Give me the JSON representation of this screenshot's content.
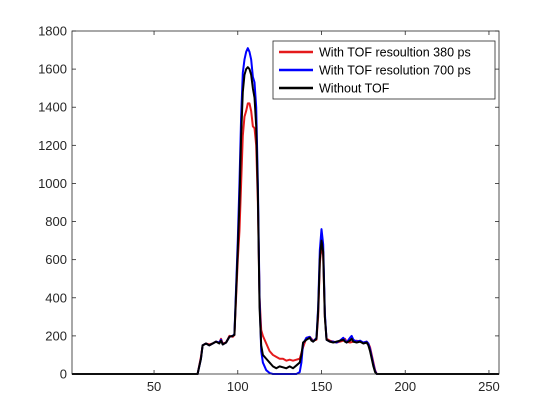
{
  "chart_data": {
    "type": "line",
    "title": "",
    "xlabel": "",
    "ylabel": "",
    "xlim": [
      1,
      256
    ],
    "ylim": [
      0,
      1800
    ],
    "xticks": [
      50,
      100,
      150,
      200,
      250
    ],
    "yticks": [
      0,
      200,
      400,
      600,
      800,
      1000,
      1200,
      1400,
      1600,
      1800
    ],
    "grid": false,
    "legend_position": "top-right",
    "series": [
      {
        "name": "With TOF resoultion 380 ps",
        "color": "#e41a1c",
        "points": [
          [
            1,
            0
          ],
          [
            76,
            0
          ],
          [
            78,
            90
          ],
          [
            79,
            150
          ],
          [
            81,
            160
          ],
          [
            83,
            155
          ],
          [
            85,
            160
          ],
          [
            87,
            170
          ],
          [
            89,
            165
          ],
          [
            90,
            185
          ],
          [
            91,
            160
          ],
          [
            93,
            165
          ],
          [
            95,
            200
          ],
          [
            97,
            195
          ],
          [
            98,
            205
          ],
          [
            100,
            600
          ],
          [
            101,
            750
          ],
          [
            102,
            1000
          ],
          [
            103,
            1250
          ],
          [
            104,
            1350
          ],
          [
            105,
            1380
          ],
          [
            106,
            1420
          ],
          [
            107,
            1420
          ],
          [
            108,
            1380
          ],
          [
            109,
            1300
          ],
          [
            110,
            1290
          ],
          [
            111,
            1200
          ],
          [
            112,
            900
          ],
          [
            113,
            400
          ],
          [
            114,
            230
          ],
          [
            115,
            200
          ],
          [
            117,
            160
          ],
          [
            119,
            120
          ],
          [
            121,
            100
          ],
          [
            123,
            90
          ],
          [
            125,
            80
          ],
          [
            127,
            80
          ],
          [
            129,
            70
          ],
          [
            131,
            75
          ],
          [
            133,
            70
          ],
          [
            135,
            75
          ],
          [
            137,
            80
          ],
          [
            139,
            140
          ],
          [
            141,
            190
          ],
          [
            143,
            195
          ],
          [
            144,
            185
          ],
          [
            145,
            175
          ],
          [
            147,
            180
          ],
          [
            148,
            300
          ],
          [
            149,
            580
          ],
          [
            150,
            680
          ],
          [
            151,
            620
          ],
          [
            152,
            300
          ],
          [
            153,
            185
          ],
          [
            155,
            175
          ],
          [
            157,
            170
          ],
          [
            159,
            165
          ],
          [
            161,
            170
          ],
          [
            163,
            175
          ],
          [
            164,
            185
          ],
          [
            165,
            170
          ],
          [
            167,
            165
          ],
          [
            169,
            170
          ],
          [
            171,
            175
          ],
          [
            173,
            170
          ],
          [
            175,
            165
          ],
          [
            177,
            170
          ],
          [
            178,
            160
          ],
          [
            179,
            140
          ],
          [
            180,
            100
          ],
          [
            181,
            60
          ],
          [
            182,
            20
          ],
          [
            183,
            0
          ],
          [
            256,
            0
          ]
        ]
      },
      {
        "name": "With TOF resolution 700 ps",
        "color": "#0000ff",
        "points": [
          [
            1,
            0
          ],
          [
            76,
            0
          ],
          [
            78,
            80
          ],
          [
            79,
            150
          ],
          [
            81,
            160
          ],
          [
            83,
            150
          ],
          [
            85,
            160
          ],
          [
            87,
            170
          ],
          [
            89,
            165
          ],
          [
            90,
            180
          ],
          [
            91,
            155
          ],
          [
            93,
            165
          ],
          [
            95,
            195
          ],
          [
            97,
            200
          ],
          [
            98,
            210
          ],
          [
            100,
            700
          ],
          [
            101,
            1000
          ],
          [
            102,
            1350
          ],
          [
            103,
            1580
          ],
          [
            104,
            1650
          ],
          [
            105,
            1690
          ],
          [
            106,
            1710
          ],
          [
            107,
            1690
          ],
          [
            108,
            1650
          ],
          [
            109,
            1560
          ],
          [
            110,
            1530
          ],
          [
            111,
            1400
          ],
          [
            112,
            1000
          ],
          [
            113,
            400
          ],
          [
            114,
            120
          ],
          [
            115,
            60
          ],
          [
            117,
            20
          ],
          [
            119,
            5
          ],
          [
            121,
            0
          ],
          [
            135,
            0
          ],
          [
            137,
            10
          ],
          [
            138,
            60
          ],
          [
            139,
            160
          ],
          [
            141,
            190
          ],
          [
            143,
            195
          ],
          [
            144,
            180
          ],
          [
            145,
            170
          ],
          [
            147,
            190
          ],
          [
            148,
            350
          ],
          [
            149,
            650
          ],
          [
            150,
            760
          ],
          [
            151,
            680
          ],
          [
            152,
            320
          ],
          [
            153,
            180
          ],
          [
            155,
            170
          ],
          [
            157,
            170
          ],
          [
            159,
            165
          ],
          [
            161,
            175
          ],
          [
            163,
            190
          ],
          [
            164,
            175
          ],
          [
            165,
            165
          ],
          [
            167,
            190
          ],
          [
            168,
            200
          ],
          [
            169,
            180
          ],
          [
            171,
            170
          ],
          [
            173,
            175
          ],
          [
            175,
            165
          ],
          [
            177,
            170
          ],
          [
            178,
            160
          ],
          [
            179,
            130
          ],
          [
            180,
            90
          ],
          [
            181,
            50
          ],
          [
            182,
            15
          ],
          [
            183,
            0
          ],
          [
            256,
            0
          ]
        ]
      },
      {
        "name": "Without TOF",
        "color": "#000000",
        "points": [
          [
            1,
            0
          ],
          [
            76,
            0
          ],
          [
            78,
            80
          ],
          [
            79,
            150
          ],
          [
            81,
            160
          ],
          [
            83,
            150
          ],
          [
            85,
            160
          ],
          [
            87,
            170
          ],
          [
            89,
            160
          ],
          [
            90,
            175
          ],
          [
            91,
            155
          ],
          [
            93,
            165
          ],
          [
            95,
            195
          ],
          [
            97,
            200
          ],
          [
            98,
            205
          ],
          [
            100,
            650
          ],
          [
            101,
            900
          ],
          [
            102,
            1250
          ],
          [
            103,
            1480
          ],
          [
            104,
            1570
          ],
          [
            105,
            1600
          ],
          [
            106,
            1610
          ],
          [
            107,
            1600
          ],
          [
            108,
            1570
          ],
          [
            109,
            1500
          ],
          [
            110,
            1450
          ],
          [
            111,
            1300
          ],
          [
            112,
            950
          ],
          [
            113,
            350
          ],
          [
            114,
            150
          ],
          [
            115,
            100
          ],
          [
            117,
            80
          ],
          [
            119,
            60
          ],
          [
            121,
            40
          ],
          [
            123,
            30
          ],
          [
            125,
            40
          ],
          [
            127,
            35
          ],
          [
            129,
            30
          ],
          [
            131,
            40
          ],
          [
            133,
            30
          ],
          [
            135,
            45
          ],
          [
            137,
            60
          ],
          [
            138,
            100
          ],
          [
            139,
            165
          ],
          [
            141,
            180
          ],
          [
            143,
            190
          ],
          [
            144,
            175
          ],
          [
            145,
            170
          ],
          [
            147,
            185
          ],
          [
            148,
            330
          ],
          [
            149,
            600
          ],
          [
            150,
            700
          ],
          [
            151,
            640
          ],
          [
            152,
            300
          ],
          [
            153,
            180
          ],
          [
            155,
            170
          ],
          [
            157,
            165
          ],
          [
            159,
            170
          ],
          [
            161,
            175
          ],
          [
            163,
            180
          ],
          [
            164,
            170
          ],
          [
            165,
            165
          ],
          [
            167,
            175
          ],
          [
            168,
            185
          ],
          [
            169,
            170
          ],
          [
            171,
            165
          ],
          [
            173,
            170
          ],
          [
            175,
            160
          ],
          [
            177,
            165
          ],
          [
            178,
            150
          ],
          [
            179,
            120
          ],
          [
            180,
            80
          ],
          [
            181,
            40
          ],
          [
            182,
            10
          ],
          [
            183,
            0
          ],
          [
            256,
            0
          ]
        ]
      }
    ]
  }
}
